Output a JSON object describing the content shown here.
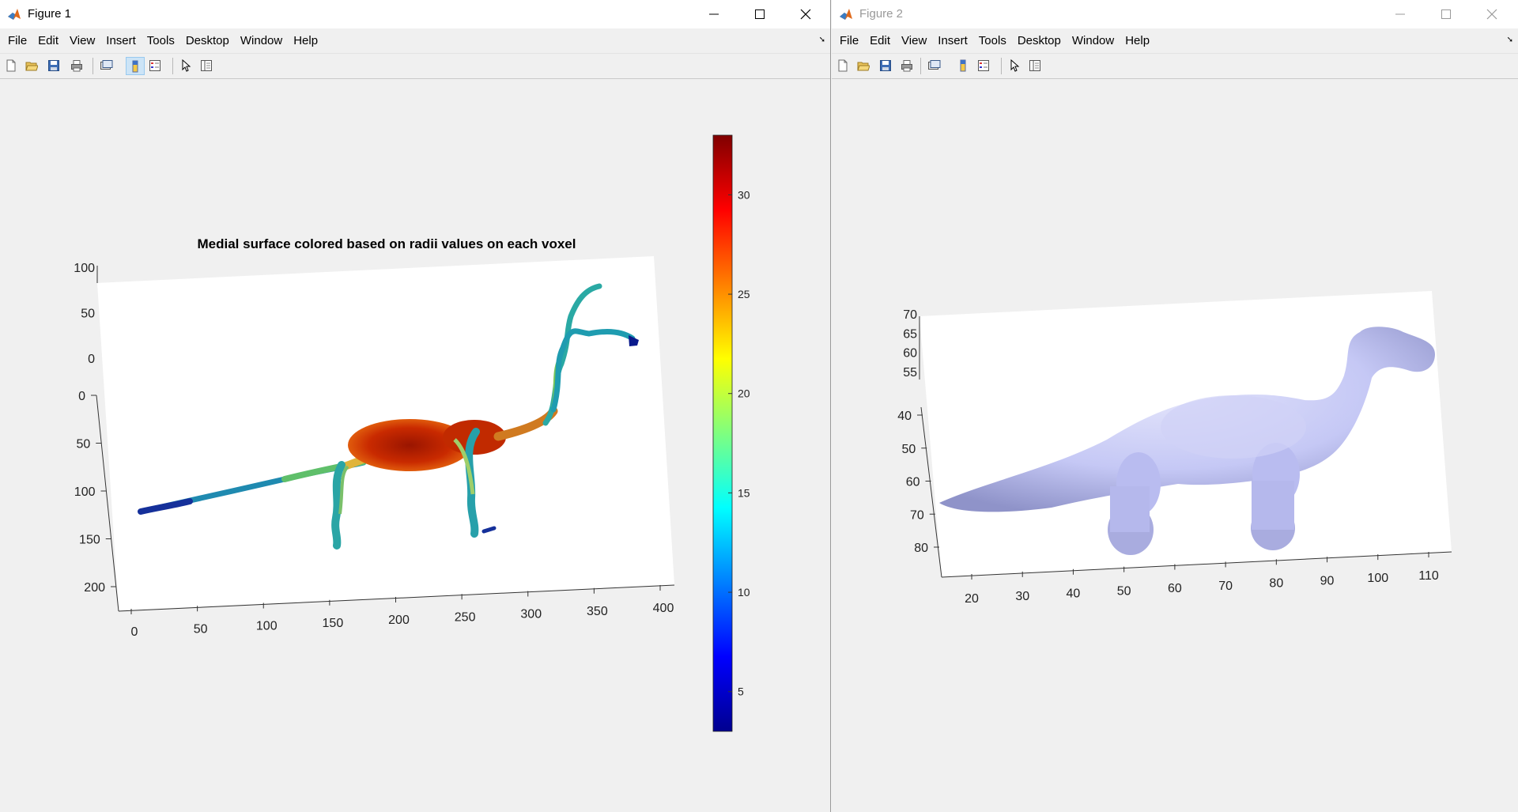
{
  "windows": [
    {
      "title": "Figure 1",
      "menu": [
        "File",
        "Edit",
        "View",
        "Insert",
        "Tools",
        "Desktop",
        "Window",
        "Help"
      ],
      "plot_title": "Medial surface colored based on radii values on each voxel",
      "x_ticks": [
        "0",
        "50",
        "100",
        "150",
        "200",
        "250",
        "300",
        "350",
        "400"
      ],
      "y_ticks": [
        "0",
        "50",
        "100",
        "150",
        "200"
      ],
      "z_ticks": [
        "100",
        "50",
        "0"
      ],
      "colorbar_ticks": [
        "30",
        "25",
        "20",
        "15",
        "10",
        "5"
      ]
    },
    {
      "title": "Figure 2",
      "menu": [
        "File",
        "Edit",
        "View",
        "Insert",
        "Tools",
        "Desktop",
        "Window",
        "Help"
      ],
      "x_ticks": [
        "20",
        "30",
        "40",
        "50",
        "60",
        "70",
        "80",
        "90",
        "100",
        "110"
      ],
      "y_ticks": [
        "40",
        "50",
        "60",
        "70",
        "80"
      ],
      "z_ticks": [
        "70",
        "65",
        "60",
        "55"
      ]
    }
  ],
  "chart_data": [
    {
      "type": "scatter",
      "title": "Medial surface colored based on radii values on each voxel",
      "xlim": [
        0,
        400
      ],
      "ylim": [
        0,
        200
      ],
      "zlim": [
        0,
        100
      ],
      "colorbar": {
        "colormap": "jet",
        "range": [
          3,
          33
        ],
        "ticks": [
          5,
          10,
          15,
          20,
          25,
          30
        ]
      }
    },
    {
      "type": "surface",
      "title": "",
      "xlim": [
        20,
        110
      ],
      "ylim": [
        40,
        80
      ],
      "zlim": [
        55,
        70
      ],
      "color": "#c5c8f5"
    }
  ]
}
